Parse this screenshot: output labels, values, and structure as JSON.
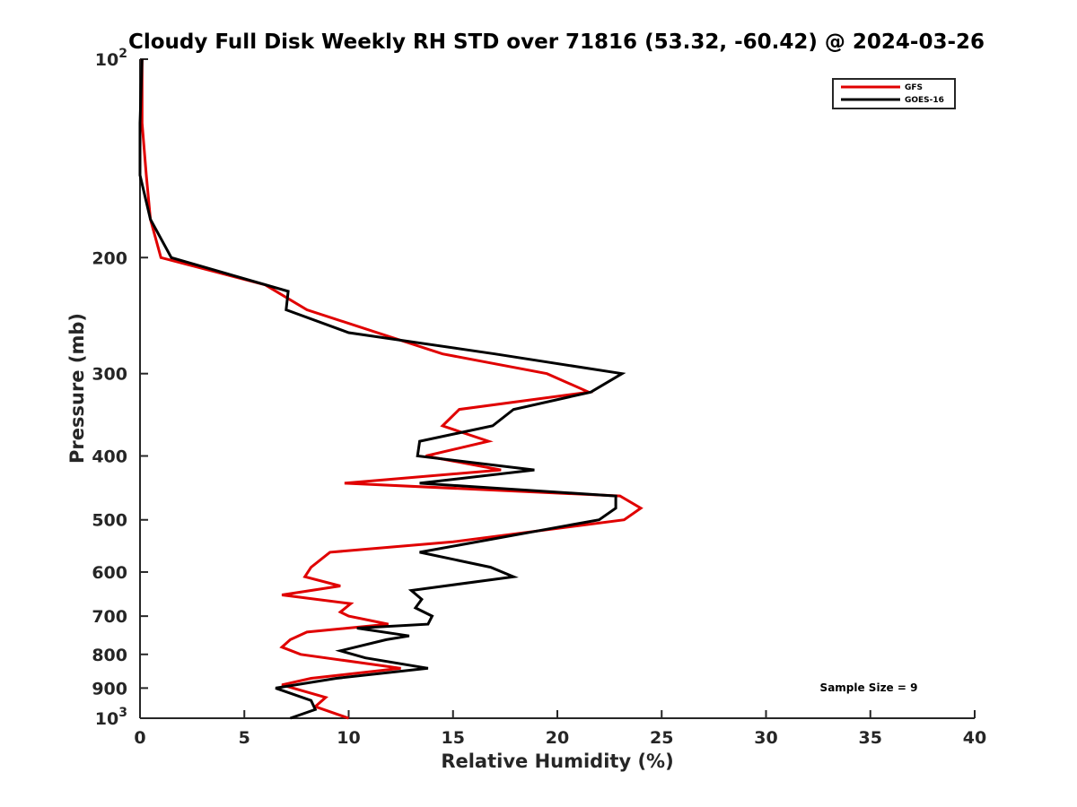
{
  "chart_data": {
    "type": "line",
    "title": "Cloudy Full Disk Weekly RH STD over 71816 (53.32, -60.42) @ 2024-03-26",
    "xlabel": "Relative Humidity (%)",
    "ylabel": "Pressure (mb)",
    "xlim": [
      0,
      40
    ],
    "ylim": [
      100,
      1000
    ],
    "y_scale": "log",
    "y_reversed": true,
    "grid": false,
    "legend_position": "top-right",
    "x_ticks": [
      "0",
      "5",
      "10",
      "15",
      "20",
      "25",
      "30",
      "35",
      "40"
    ],
    "y_ticks": [
      {
        "value": 100,
        "base": "10",
        "exp": "2"
      },
      {
        "value": 200,
        "label": "200"
      },
      {
        "value": 300,
        "label": "300"
      },
      {
        "value": 400,
        "label": "400"
      },
      {
        "value": 500,
        "label": "500"
      },
      {
        "value": 600,
        "label": "600"
      },
      {
        "value": 700,
        "label": "700"
      },
      {
        "value": 800,
        "label": "800"
      },
      {
        "value": 900,
        "label": "900"
      },
      {
        "value": 1000,
        "base": "10",
        "exp": "3"
      }
    ],
    "annotation": "Sample Size = 9",
    "series": [
      {
        "name": "GFS",
        "color": "#e00000",
        "points": [
          [
            0.1,
            100
          ],
          [
            0.1,
            125
          ],
          [
            0.3,
            150
          ],
          [
            0.5,
            175
          ],
          [
            1.0,
            200
          ],
          [
            6.0,
            220
          ],
          [
            8.0,
            240
          ],
          [
            14.5,
            280
          ],
          [
            19.5,
            300
          ],
          [
            21.5,
            320
          ],
          [
            15.3,
            340
          ],
          [
            14.5,
            360
          ],
          [
            16.7,
            380
          ],
          [
            13.7,
            400
          ],
          [
            17.3,
            420
          ],
          [
            9.8,
            440
          ],
          [
            23.0,
            460
          ],
          [
            24.0,
            480
          ],
          [
            23.2,
            500
          ],
          [
            15.0,
            540
          ],
          [
            9.1,
            560
          ],
          [
            8.2,
            590
          ],
          [
            7.9,
            610
          ],
          [
            9.6,
            630
          ],
          [
            6.8,
            650
          ],
          [
            10.1,
            670
          ],
          [
            9.6,
            690
          ],
          [
            10.0,
            700
          ],
          [
            11.9,
            720
          ],
          [
            8.0,
            740
          ],
          [
            7.2,
            760
          ],
          [
            6.8,
            780
          ],
          [
            7.7,
            800
          ],
          [
            12.5,
            840
          ],
          [
            8.2,
            870
          ],
          [
            6.8,
            890
          ],
          [
            8.9,
            930
          ],
          [
            8.4,
            960
          ],
          [
            10.0,
            1000
          ]
        ]
      },
      {
        "name": "GOES-16",
        "color": "#000000",
        "points": [
          [
            0.1,
            100
          ],
          [
            0.0,
            125
          ],
          [
            0.0,
            150
          ],
          [
            0.5,
            175
          ],
          [
            1.5,
            200
          ],
          [
            7.1,
            225
          ],
          [
            7.0,
            240
          ],
          [
            10.0,
            260
          ],
          [
            17.0,
            280
          ],
          [
            23.1,
            300
          ],
          [
            21.6,
            320
          ],
          [
            17.9,
            340
          ],
          [
            16.9,
            360
          ],
          [
            13.4,
            380
          ],
          [
            13.3,
            400
          ],
          [
            18.9,
            420
          ],
          [
            13.4,
            440
          ],
          [
            22.8,
            460
          ],
          [
            22.8,
            480
          ],
          [
            22.0,
            500
          ],
          [
            19.0,
            520
          ],
          [
            13.4,
            560
          ],
          [
            16.8,
            590
          ],
          [
            17.9,
            610
          ],
          [
            13.0,
            640
          ],
          [
            13.5,
            660
          ],
          [
            13.2,
            680
          ],
          [
            14.0,
            700
          ],
          [
            13.8,
            720
          ],
          [
            10.4,
            730
          ],
          [
            12.9,
            750
          ],
          [
            11.8,
            760
          ],
          [
            9.6,
            790
          ],
          [
            10.8,
            810
          ],
          [
            13.8,
            840
          ],
          [
            9.4,
            870
          ],
          [
            6.5,
            900
          ],
          [
            8.2,
            940
          ],
          [
            8.4,
            970
          ],
          [
            7.2,
            1000
          ]
        ]
      }
    ]
  }
}
